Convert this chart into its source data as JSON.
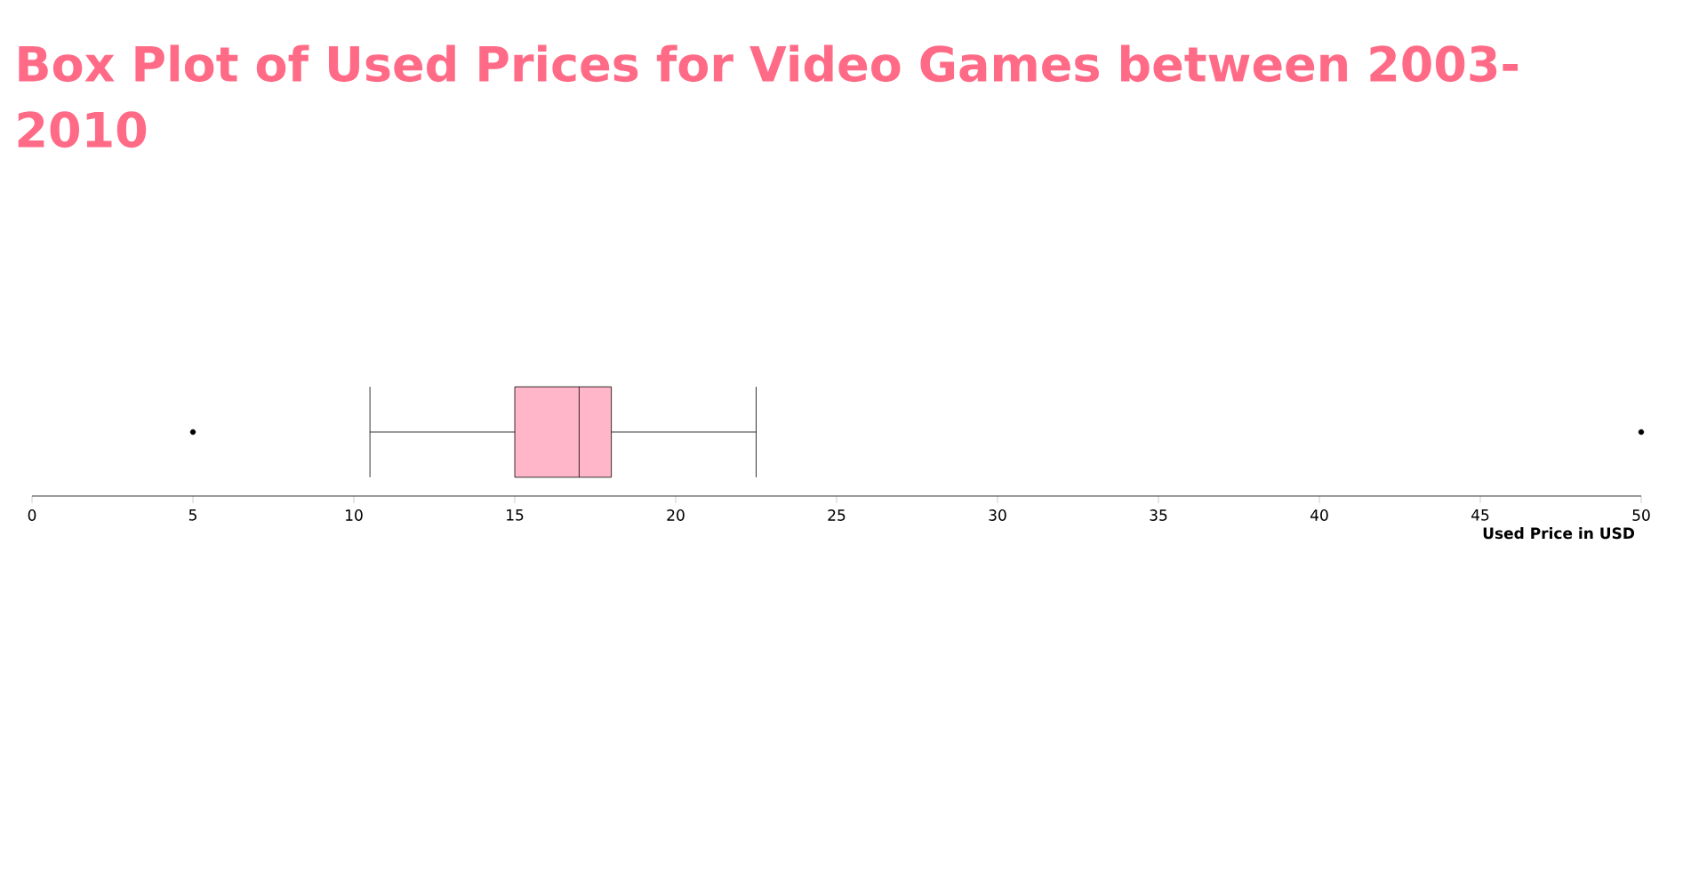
{
  "chart_data": {
    "type": "box",
    "orientation": "horizontal",
    "title": "Box Plot of Used Prices for Video Games between 2003-2010",
    "xlabel": "Used Price in USD",
    "categories": [
      null
    ],
    "series": [
      {
        "color": "#ffb6c8",
        "boxes": [
          {
            "low": 10.5,
            "q1": 15,
            "median": 17,
            "q3": 18,
            "high": 22.5,
            "outliers": [
              5,
              50
            ]
          }
        ]
      }
    ],
    "xlim": [
      0,
      50
    ],
    "xticks": [
      0,
      5,
      10,
      15,
      20,
      25,
      30,
      35,
      40,
      45,
      50
    ],
    "tick_labels": "x"
  }
}
